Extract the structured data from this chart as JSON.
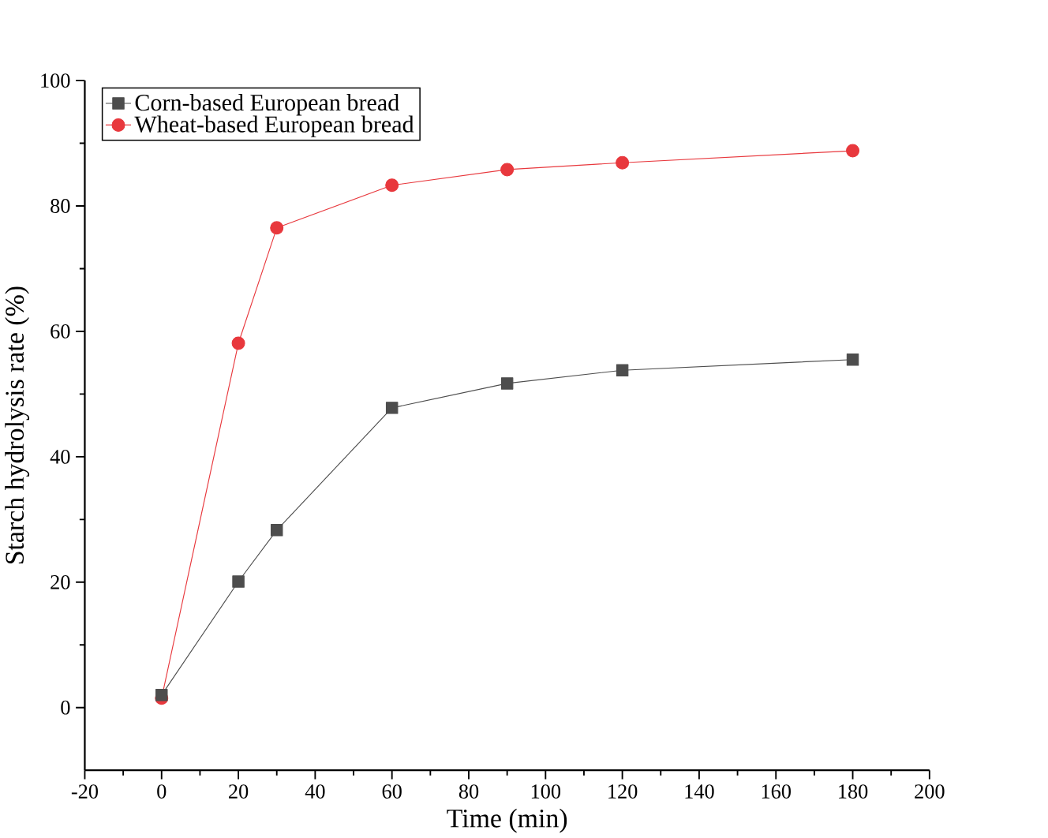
{
  "chart_data": {
    "type": "line",
    "xlabel": "Time (min)",
    "ylabel": "Starch hydrolysis rate (%)",
    "x": [
      0,
      20,
      30,
      60,
      90,
      120,
      180
    ],
    "series": [
      {
        "name": "Corn-based European bread",
        "color": "#4d4d4d",
        "marker": "square",
        "values": [
          2.0,
          20.1,
          28.3,
          47.8,
          51.7,
          53.8,
          55.5
        ]
      },
      {
        "name": "Wheat-based European bread",
        "color": "#e8383d",
        "marker": "circle",
        "values": [
          1.5,
          58.1,
          76.5,
          83.3,
          85.8,
          86.9,
          88.8
        ]
      }
    ],
    "xlim": [
      -20,
      200
    ],
    "ylim": [
      -10,
      100
    ],
    "xticks": [
      -20,
      0,
      20,
      40,
      60,
      80,
      100,
      120,
      140,
      160,
      180,
      200
    ],
    "yticks": [
      0,
      20,
      40,
      60,
      80,
      100
    ],
    "legend": "top left",
    "grid": false,
    "line_style": "solid"
  }
}
